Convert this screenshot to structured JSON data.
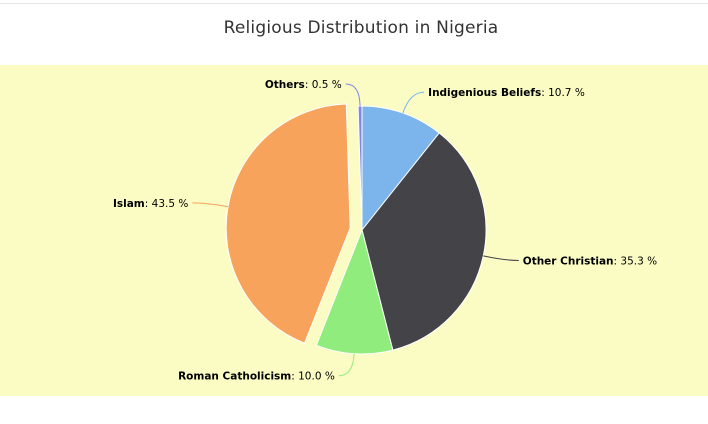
{
  "chart_data": {
    "type": "pie",
    "title": "Religious Distribution in Nigeria",
    "slices": [
      {
        "name": "Indigenious Beliefs",
        "value": 10.7,
        "label_value": "10.7 %",
        "color": "#7cb5ec",
        "sliced": false
      },
      {
        "name": "Other Christian",
        "value": 35.3,
        "label_value": "35.3 %",
        "color": "#434348",
        "sliced": false
      },
      {
        "name": "Roman Catholicism",
        "value": 10.0,
        "label_value": "10.0 %",
        "color": "#90ed7d",
        "sliced": false
      },
      {
        "name": "Islam",
        "value": 43.5,
        "label_value": "43.5 %",
        "color": "#f7a35c",
        "sliced": true
      },
      {
        "name": "Others",
        "value": 0.5,
        "label_value": "0.5 %",
        "color": "#8085e9",
        "sliced": false
      }
    ],
    "plot_background": "#fbfcc3"
  }
}
